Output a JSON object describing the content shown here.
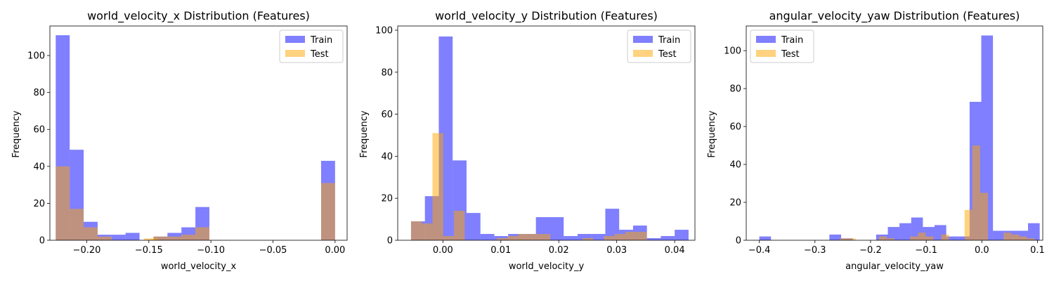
{
  "chart_data": [
    {
      "type": "bar",
      "title": "world_velocity_x Distribution (Features)",
      "xlabel": "world_velocity_x",
      "ylabel": "Frequency",
      "xlim": [
        -0.2297,
        0.0097
      ],
      "ylim": [
        0,
        116
      ],
      "xticks": [
        -0.2,
        -0.15,
        -0.1,
        -0.05,
        0.0
      ],
      "xtick_labels": [
        "−0.20",
        "−0.15",
        "−0.10",
        "−0.05",
        "0.00"
      ],
      "yticks": [
        0,
        20,
        40,
        60,
        80,
        100
      ],
      "legend_position": "top-right",
      "series": [
        {
          "name": "Train",
          "color": "#0000ff",
          "opacity": 0.5,
          "bin_width": 0.01125,
          "bins": [
            [
              -0.225,
              111
            ],
            [
              -0.21375,
              49
            ],
            [
              -0.2025,
              10
            ],
            [
              -0.19125,
              3
            ],
            [
              -0.18,
              3
            ],
            [
              -0.16875,
              4
            ],
            [
              -0.1575,
              0
            ],
            [
              -0.14625,
              2
            ],
            [
              -0.135,
              4
            ],
            [
              -0.12375,
              7
            ],
            [
              -0.1125,
              18
            ],
            [
              -0.01125,
              43
            ]
          ]
        },
        {
          "name": "Test",
          "color": "#ffa500",
          "opacity": 0.5,
          "bin_width": 0.01125,
          "bins": [
            [
              -0.225,
              40
            ],
            [
              -0.21375,
              17
            ],
            [
              -0.2025,
              7
            ],
            [
              -0.19125,
              2
            ],
            [
              -0.15375,
              1
            ],
            [
              -0.14625,
              2
            ],
            [
              -0.135,
              2
            ],
            [
              -0.12375,
              3
            ],
            [
              -0.1125,
              7
            ],
            [
              -0.01125,
              31
            ]
          ]
        }
      ]
    },
    {
      "type": "bar",
      "title": "world_velocity_y Distribution (Features)",
      "xlabel": "world_velocity_y",
      "ylabel": "Frequency",
      "xlim": [
        -0.0078,
        0.0435
      ],
      "ylim": [
        0,
        102
      ],
      "xticks": [
        0.0,
        0.01,
        0.02,
        0.03,
        0.04
      ],
      "xtick_labels": [
        "0.00",
        "0.01",
        "0.02",
        "0.03",
        "0.04"
      ],
      "yticks": [
        0,
        20,
        40,
        60,
        80,
        100
      ],
      "legend_position": "top-right",
      "series": [
        {
          "name": "Train",
          "color": "#0000ff",
          "opacity": 0.5,
          "bin_width": 0.002395,
          "bins": [
            [
              -0.0055,
              9
            ],
            [
              -0.003105,
              21
            ],
            [
              -0.00071,
              97
            ],
            [
              0.001685,
              38
            ],
            [
              0.00408,
              13
            ],
            [
              0.006475,
              3
            ],
            [
              0.00887,
              2
            ],
            [
              0.011265,
              3
            ],
            [
              0.01366,
              3
            ],
            [
              0.016055,
              11
            ],
            [
              0.01845,
              11
            ],
            [
              0.020845,
              2
            ],
            [
              0.02324,
              3
            ],
            [
              0.025635,
              3
            ],
            [
              0.02803,
              15
            ],
            [
              0.030425,
              5
            ],
            [
              0.03282,
              7
            ],
            [
              0.035215,
              1
            ],
            [
              0.03761,
              2
            ],
            [
              0.040005,
              5
            ]
          ]
        },
        {
          "name": "Test",
          "color": "#ffa500",
          "opacity": 0.5,
          "bin_width": 0.00185,
          "bins": [
            [
              -0.0055,
              9
            ],
            [
              -0.00365,
              8
            ],
            [
              -0.0018,
              51
            ],
            [
              5e-05,
              2
            ],
            [
              0.0019,
              14
            ],
            [
              0.00375,
              0
            ],
            [
              0.0056,
              0
            ],
            [
              0.00745,
              0
            ],
            [
              0.0093,
              1
            ],
            [
              0.01115,
              2
            ],
            [
              0.013,
              3
            ],
            [
              0.01485,
              3
            ],
            [
              0.0167,
              3
            ],
            [
              0.01855,
              0
            ],
            [
              0.0204,
              0
            ],
            [
              0.02225,
              0
            ],
            [
              0.0241,
              1
            ],
            [
              0.02595,
              0
            ],
            [
              0.0278,
              2
            ],
            [
              0.02965,
              3
            ],
            [
              0.0315,
              4
            ],
            [
              0.03335,
              4
            ]
          ]
        }
      ]
    },
    {
      "type": "bar",
      "title": "angular_velocity_yaw Distribution (Features)",
      "xlabel": "angular_velocity_yaw",
      "ylabel": "Frequency",
      "xlim": [
        -0.4235,
        0.1095
      ],
      "ylim": [
        0,
        113
      ],
      "xticks": [
        -0.4,
        -0.3,
        -0.2,
        -0.1,
        0.0,
        0.1
      ],
      "xtick_labels": [
        "−0.4",
        "−0.3",
        "−0.2",
        "−0.1",
        "0.0",
        "0.1"
      ],
      "yticks": [
        0,
        20,
        40,
        60,
        80,
        100
      ],
      "legend_position": "top-left",
      "series": [
        {
          "name": "Train",
          "color": "#0000ff",
          "opacity": 0.5,
          "bin_width": 0.021,
          "bins": [
            [
              -0.4,
              2
            ],
            [
              -0.379,
              0
            ],
            [
              -0.358,
              0
            ],
            [
              -0.337,
              0
            ],
            [
              -0.316,
              0
            ],
            [
              -0.295,
              0
            ],
            [
              -0.274,
              3
            ],
            [
              -0.253,
              1
            ],
            [
              -0.232,
              0
            ],
            [
              -0.211,
              0
            ],
            [
              -0.19,
              3
            ],
            [
              -0.169,
              7
            ],
            [
              -0.148,
              9
            ],
            [
              -0.127,
              12
            ],
            [
              -0.106,
              7
            ],
            [
              -0.085,
              8
            ],
            [
              -0.064,
              2
            ],
            [
              -0.043,
              2
            ],
            [
              -0.022,
              73
            ],
            [
              -0.001,
              108
            ],
            [
              0.02,
              5
            ],
            [
              0.041,
              5
            ],
            [
              0.062,
              5
            ],
            [
              0.083,
              9
            ]
          ]
        },
        {
          "name": "Test",
          "color": "#ffa500",
          "opacity": 0.5,
          "bin_width": 0.014,
          "bins": [
            [
              -0.255,
              1
            ],
            [
              -0.241,
              1
            ],
            [
              -0.185,
              2
            ],
            [
              -0.171,
              1
            ],
            [
              -0.129,
              2
            ],
            [
              -0.115,
              4
            ],
            [
              -0.101,
              2
            ],
            [
              -0.073,
              3
            ],
            [
              -0.031,
              16
            ],
            [
              -0.017,
              50
            ],
            [
              -0.003,
              25
            ],
            [
              0.039,
              4
            ],
            [
              0.053,
              3
            ],
            [
              0.067,
              2
            ],
            [
              0.081,
              1
            ]
          ]
        }
      ]
    }
  ]
}
